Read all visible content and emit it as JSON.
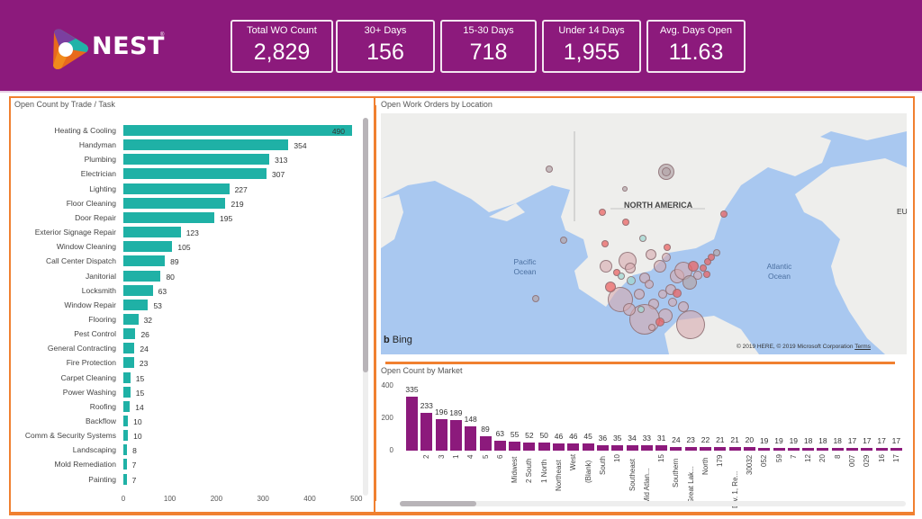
{
  "header": {
    "brand": "NEST",
    "kpis": [
      {
        "label": "Total WO Count",
        "value": "2,829"
      },
      {
        "label": "30+ Days",
        "value": "156"
      },
      {
        "label": "15-30 Days",
        "value": "718"
      },
      {
        "label": "Under 14 Days",
        "value": "1,955"
      },
      {
        "label": "Avg. Days Open",
        "value": "11.63"
      }
    ]
  },
  "colors": {
    "header_bg": "#8c1a7c",
    "accent_border": "#f08030",
    "trade_bar": "#1fb1a6",
    "market_bar": "#8c1a7c"
  },
  "map": {
    "title": "Open Work Orders by Location",
    "labels": {
      "continent": "NORTH AMERICA",
      "pacific": "Pacific\nOcean",
      "atlantic": "Atlantic\nOcean",
      "europe_partial": "EU"
    },
    "bing": "Bing",
    "copyright": "© 2019 HERE, © 2019 Microsoft Corporation",
    "terms": "Terms"
  },
  "chart_data": [
    {
      "type": "bar",
      "orientation": "horizontal",
      "title": "Open Count by Trade / Task",
      "categories": [
        "Heating & Cooling",
        "Handyman",
        "Plumbing",
        "Electrician",
        "Lighting",
        "Floor Cleaning",
        "Door Repair",
        "Exterior Signage Repair",
        "Window Cleaning",
        "Call Center Dispatch",
        "Janitorial",
        "Locksmith",
        "Window Repair",
        "Flooring",
        "Pest Control",
        "General Contracting",
        "Fire Protection",
        "Carpet Cleaning",
        "Power Washing",
        "Roofing",
        "Backflow",
        "Comm & Security Systems",
        "Landscaping",
        "Mold Remediation",
        "Painting"
      ],
      "values": [
        490,
        354,
        313,
        307,
        227,
        219,
        195,
        123,
        105,
        89,
        80,
        63,
        53,
        32,
        26,
        24,
        23,
        15,
        15,
        14,
        10,
        10,
        8,
        7,
        7
      ],
      "xlim": [
        0,
        500
      ],
      "xticks": [
        0,
        100,
        200,
        300,
        400,
        500
      ],
      "xlabel": "",
      "ylabel": "",
      "grid": false
    },
    {
      "type": "bar",
      "orientation": "vertical",
      "title": "Open Count by Market",
      "categories": [
        "",
        "2",
        "3",
        "1",
        "4",
        "5",
        "6",
        "Midwest",
        "2 South",
        "1 North",
        "Northeast",
        "West",
        "(Blank)",
        "South",
        "10",
        "Southeast",
        "Mid Atlan...",
        "15",
        "Southern",
        "Great Lak...",
        "North",
        "179",
        "Div. 1, Re...",
        "30032",
        "052",
        "59",
        "7",
        "12",
        "20",
        "8",
        "007",
        "029",
        "16",
        "17"
      ],
      "values": [
        335,
        233,
        196,
        189,
        148,
        89,
        63,
        55,
        52,
        50,
        46,
        46,
        45,
        36,
        35,
        34,
        33,
        31,
        24,
        23,
        22,
        21,
        21,
        20,
        19,
        19,
        19,
        18,
        18,
        18,
        17,
        17,
        17,
        17
      ],
      "ylim": [
        0,
        400
      ],
      "yticks": [
        0,
        200,
        400
      ],
      "xlabel": "",
      "ylabel": "",
      "grid": false
    }
  ]
}
